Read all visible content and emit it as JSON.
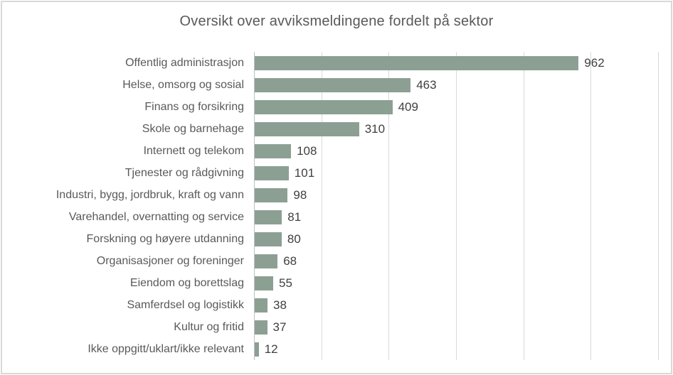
{
  "chart_data": {
    "type": "bar",
    "orientation": "horizontal",
    "title": "Oversikt over avviksmeldingene fordelt på sektor",
    "categories": [
      "Offentlig administrasjon",
      "Helse, omsorg og sosial",
      "Finans og forsikring",
      "Skole og barnehage",
      "Internett og telekom",
      "Tjenester og rådgivning",
      "Industri, bygg, jordbruk, kraft og vann",
      "Varehandel, overnatting og service",
      "Forskning og høyere utdanning",
      "Organisasjoner og foreninger",
      "Eiendom og borettslag",
      "Samferdsel og logistikk",
      "Kultur og fritid",
      "Ikke oppgitt/uklart/ikke relevant"
    ],
    "values": [
      962,
      463,
      409,
      310,
      108,
      101,
      98,
      81,
      80,
      68,
      55,
      38,
      37,
      12
    ],
    "xlim": [
      0,
      1200
    ],
    "tick_interval": 200,
    "grid": "vertical-only",
    "axis_tick_labels_visible": false,
    "data_labels": true,
    "legend": "none",
    "colors": {
      "bar": "#8C9F93",
      "gridline": "#D9D9D9",
      "axis_line": "#BFBFBF",
      "frame_border": "#D9D9D9",
      "title_text": "#595959",
      "category_text": "#595959",
      "value_text": "#404040",
      "background": "#ffffff"
    }
  }
}
